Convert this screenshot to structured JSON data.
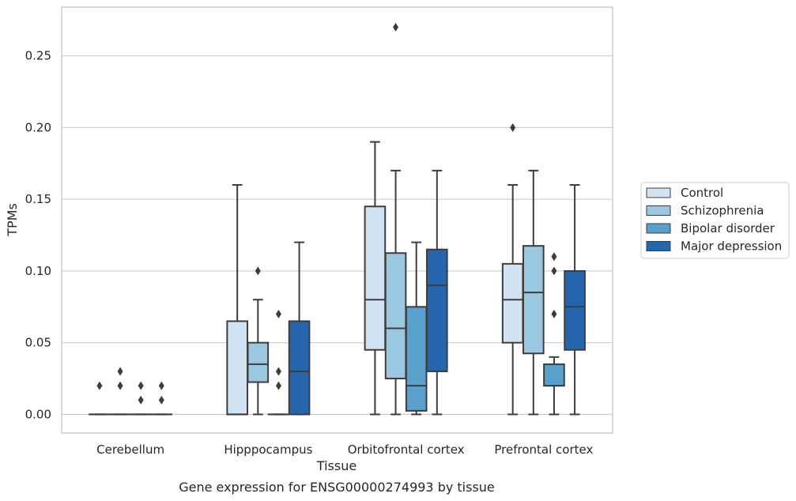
{
  "chart_data": {
    "type": "box",
    "xlabel": "Tissue",
    "ylabel": "TPMs",
    "caption": "Gene expression for ENSG00000274993 by tissue",
    "ylim": [
      -0.013,
      0.284
    ],
    "yticks": [
      "0.00",
      "0.05",
      "0.10",
      "0.15",
      "0.20",
      "0.25"
    ],
    "ytick_values": [
      0,
      0.05,
      0.1,
      0.15,
      0.2,
      0.25
    ],
    "grid": "horizontal",
    "legend_position": "right",
    "categories": [
      "Cerebellum",
      "Hipppocampus",
      "Orbitofrontal cortex",
      "Prefrontal cortex"
    ],
    "series": [
      {
        "name": "Control",
        "color": "#d1e3f3",
        "boxes": [
          {
            "q1": 0,
            "median": 0,
            "q3": 0,
            "whisker_low": 0,
            "whisker_high": 0,
            "outliers": [
              0.02
            ]
          },
          {
            "q1": 0,
            "median": 0,
            "q3": 0.065,
            "whisker_low": 0,
            "whisker_high": 0.16,
            "outliers": []
          },
          {
            "q1": 0.045,
            "median": 0.08,
            "q3": 0.145,
            "whisker_low": 0,
            "whisker_high": 0.19,
            "outliers": []
          },
          {
            "q1": 0.05,
            "median": 0.08,
            "q3": 0.105,
            "whisker_low": 0,
            "whisker_high": 0.16,
            "outliers": [
              0.2
            ]
          }
        ]
      },
      {
        "name": "Schizophrenia",
        "color": "#9ac8e0",
        "boxes": [
          {
            "q1": 0,
            "median": 0,
            "q3": 0,
            "whisker_low": 0,
            "whisker_high": 0,
            "outliers": [
              0.02,
              0.03
            ]
          },
          {
            "q1": 0.0225,
            "median": 0.035,
            "q3": 0.05,
            "whisker_low": 0,
            "whisker_high": 0.08,
            "outliers": [
              0.1
            ]
          },
          {
            "q1": 0.025,
            "median": 0.06,
            "q3": 0.1125,
            "whisker_low": 0,
            "whisker_high": 0.17,
            "outliers": [
              0.27
            ]
          },
          {
            "q1": 0.0425,
            "median": 0.085,
            "q3": 0.1175,
            "whisker_low": 0,
            "whisker_high": 0.17,
            "outliers": []
          }
        ]
      },
      {
        "name": "Bipolar disorder",
        "color": "#5aa0cd",
        "boxes": [
          {
            "q1": 0,
            "median": 0,
            "q3": 0,
            "whisker_low": 0,
            "whisker_high": 0,
            "outliers": [
              0.01,
              0.02
            ]
          },
          {
            "q1": 0,
            "median": 0,
            "q3": 0,
            "whisker_low": 0,
            "whisker_high": 0,
            "outliers": [
              0.02,
              0.03,
              0.07
            ]
          },
          {
            "q1": 0.0025,
            "median": 0.02,
            "q3": 0.075,
            "whisker_low": 0,
            "whisker_high": 0.12,
            "outliers": []
          },
          {
            "q1": 0.02,
            "median": 0.02,
            "q3": 0.035,
            "whisker_low": 0,
            "whisker_high": 0.04,
            "outliers": [
              0.07,
              0.1,
              0.11
            ]
          }
        ]
      },
      {
        "name": "Major depression",
        "color": "#2666ae",
        "boxes": [
          {
            "q1": 0,
            "median": 0,
            "q3": 0,
            "whisker_low": 0,
            "whisker_high": 0,
            "outliers": [
              0.01,
              0.02
            ]
          },
          {
            "q1": 0,
            "median": 0.03,
            "q3": 0.065,
            "whisker_low": 0,
            "whisker_high": 0.12,
            "outliers": []
          },
          {
            "q1": 0.03,
            "median": 0.09,
            "q3": 0.115,
            "whisker_low": 0,
            "whisker_high": 0.17,
            "outliers": []
          },
          {
            "q1": 0.045,
            "median": 0.075,
            "q3": 0.1,
            "whisker_low": 0,
            "whisker_high": 0.16,
            "outliers": []
          }
        ]
      }
    ]
  }
}
